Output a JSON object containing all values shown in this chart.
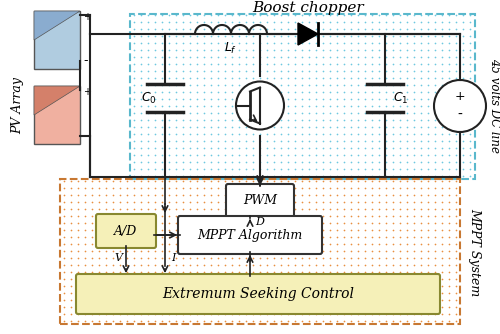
{
  "title": "Boost chopper",
  "mppt_label": "MPPT System",
  "dc_line_label": "45 volts DC line",
  "pv_label": "PV Array",
  "boost_bg": "#c8eef5",
  "boost_border": "#5ab8cc",
  "mppt_bg": "#f5c878",
  "mppt_border": "#d4824a",
  "ad_bg": "#f5f0b8",
  "esc_bg": "#f5f0b8",
  "pv_blue_color": "#b0cce0",
  "pv_blue_dark": "#8aaccf",
  "pv_red_color": "#f0b0a0",
  "pv_red_dark": "#d4806a",
  "circuit_line_color": "#222222",
  "figsize": [
    5.0,
    3.34
  ],
  "dpi": 100
}
